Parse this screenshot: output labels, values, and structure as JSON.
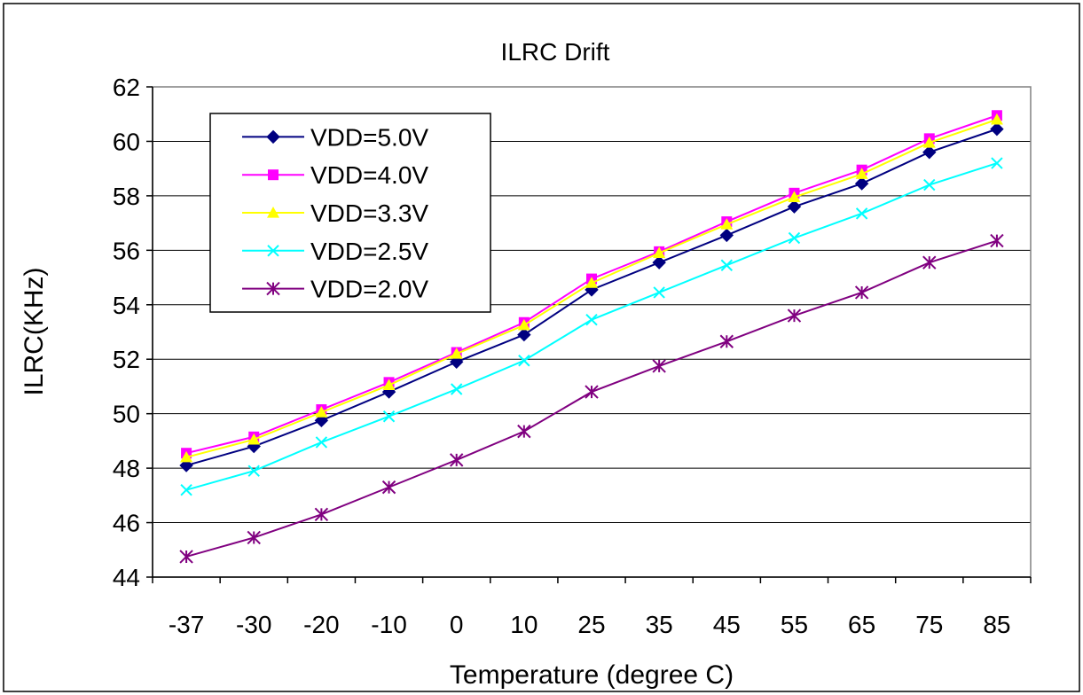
{
  "chart_data": {
    "type": "line",
    "title": "ILRC Drift",
    "xlabel": "Temperature (degree C)",
    "ylabel": "ILRC(KHz)",
    "ylim": [
      44,
      62
    ],
    "yticks": [
      44,
      46,
      48,
      50,
      52,
      54,
      56,
      58,
      60,
      62
    ],
    "categories": [
      "-37",
      "-30",
      "-20",
      "-10",
      "0",
      "10",
      "25",
      "35",
      "45",
      "55",
      "65",
      "75",
      "85"
    ],
    "grid": "horizontal",
    "legend_position": "top-left",
    "series": [
      {
        "name": "VDD=5.0V",
        "color": "#000080",
        "marker": "diamond",
        "values": [
          48.1,
          48.8,
          49.75,
          50.8,
          51.9,
          52.9,
          54.55,
          55.55,
          56.55,
          57.6,
          58.45,
          59.6,
          60.45
        ]
      },
      {
        "name": "VDD=4.0V",
        "color": "#FF00FF",
        "marker": "square",
        "values": [
          48.55,
          49.15,
          50.15,
          51.15,
          52.25,
          53.35,
          54.95,
          55.95,
          57.05,
          58.1,
          58.95,
          60.1,
          60.95
        ]
      },
      {
        "name": "VDD=3.3V",
        "color": "#FFFF00",
        "marker": "triangle",
        "values": [
          48.4,
          49.05,
          50.05,
          51.05,
          52.2,
          53.25,
          54.8,
          55.9,
          56.95,
          57.95,
          58.8,
          59.95,
          60.8
        ]
      },
      {
        "name": "VDD=2.5V",
        "color": "#00FFFF",
        "marker": "x",
        "values": [
          47.2,
          47.9,
          48.95,
          49.9,
          50.9,
          51.95,
          53.45,
          54.45,
          55.45,
          56.45,
          57.35,
          58.4,
          59.2
        ]
      },
      {
        "name": "VDD=2.0V",
        "color": "#800080",
        "marker": "star",
        "values": [
          44.75,
          45.45,
          46.3,
          47.3,
          48.3,
          49.35,
          50.8,
          51.75,
          52.65,
          53.6,
          54.45,
          55.55,
          56.35
        ]
      }
    ]
  }
}
